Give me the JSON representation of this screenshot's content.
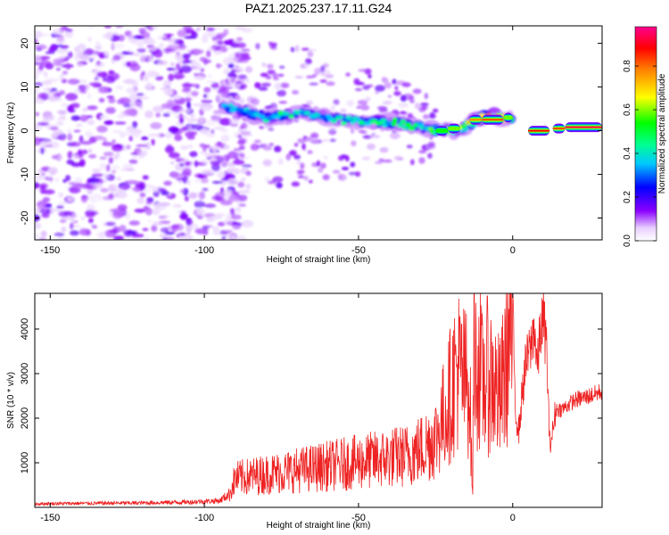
{
  "title": "PAZ1.2025.237.17.11.G24",
  "chart_data": [
    {
      "type": "heatmap",
      "title": "PAZ1.2025.237.17.11.G24",
      "xlabel": "Height of straight line (km)",
      "ylabel": "Frequency (Hz)",
      "xlim": [
        -155,
        29
      ],
      "ylim": [
        -25,
        24
      ],
      "xticks": [
        -150,
        -100,
        -50,
        0
      ],
      "yticks": [
        -20,
        -10,
        0,
        10,
        20
      ],
      "colorbar": {
        "label": "Normalized spectral amplitude",
        "range": [
          0,
          0.98
        ],
        "ticks": [
          0,
          0.2,
          0.4,
          0.6,
          0.8
        ],
        "tick_labels": [
          "0.0",
          "0.2",
          "0.4",
          "0.6",
          "0.8"
        ],
        "colormap": [
          "#ffffff",
          "#8a00ff",
          "#0000ff",
          "#00ffff",
          "#00ff00",
          "#ffff00",
          "#ff8000",
          "#ff0000",
          "#ff0080"
        ]
      },
      "signal_track": {
        "x": [
          -95,
          -90,
          -80,
          -70,
          -60,
          -50,
          -40,
          -30,
          -25,
          -20,
          -15,
          -10,
          -5,
          0,
          3,
          5,
          10,
          15,
          20,
          29
        ],
        "frequency": [
          6,
          5,
          3,
          4,
          3,
          2,
          2,
          1,
          0,
          0,
          1,
          3,
          3,
          3,
          1,
          0,
          0,
          1,
          1,
          1
        ],
        "peak_amplitude": [
          0.3,
          0.4,
          0.45,
          0.4,
          0.4,
          0.4,
          0.45,
          0.5,
          0.5,
          0.55,
          0.6,
          0.8,
          0.8,
          0.6,
          0.5,
          0.85,
          0.9,
          0.9,
          0.95,
          0.95
        ]
      },
      "noise_region": {
        "x_range": [
          -155,
          -92
        ],
        "frequency_range": [
          -25,
          24
        ],
        "typical_amplitude": 0.05
      }
    },
    {
      "type": "line",
      "xlabel": "Height of straight line (km)",
      "ylabel": "SNR (10 * v/v)",
      "xlim": [
        -155,
        29
      ],
      "ylim": [
        0,
        4800
      ],
      "xticks": [
        -150,
        -100,
        -50,
        0
      ],
      "yticks": [
        1000,
        2000,
        3000,
        4000
      ],
      "series": [
        {
          "name": "SNR",
          "color": "#ee2222",
          "x": [
            -155,
            -140,
            -120,
            -105,
            -95,
            -92,
            -90,
            -85,
            -80,
            -75,
            -70,
            -65,
            -60,
            -55,
            -50,
            -45,
            -40,
            -35,
            -30,
            -25,
            -22,
            -20,
            -18,
            -16,
            -14,
            -13,
            -12.5,
            -12,
            -11,
            -10,
            -8,
            -6,
            -5,
            -4,
            -3,
            -2,
            -1,
            0,
            1,
            2,
            3,
            4,
            5,
            6,
            7,
            8,
            9,
            10,
            11,
            12,
            13,
            14,
            16,
            20,
            25,
            29
          ],
          "values": [
            80,
            90,
            100,
            120,
            150,
            300,
            700,
            750,
            800,
            850,
            900,
            950,
            1000,
            1050,
            1100,
            1150,
            1200,
            1250,
            1400,
            1700,
            2300,
            2800,
            3400,
            3100,
            3000,
            200,
            4700,
            3300,
            3600,
            3000,
            3200,
            3000,
            2700,
            2600,
            3100,
            3600,
            4200,
            4300,
            2100,
            1700,
            2500,
            3100,
            3400,
            3600,
            4100,
            3100,
            4000,
            4200,
            3600,
            1400,
            1700,
            2200,
            2200,
            2400,
            2500,
            2600
          ]
        }
      ]
    }
  ]
}
